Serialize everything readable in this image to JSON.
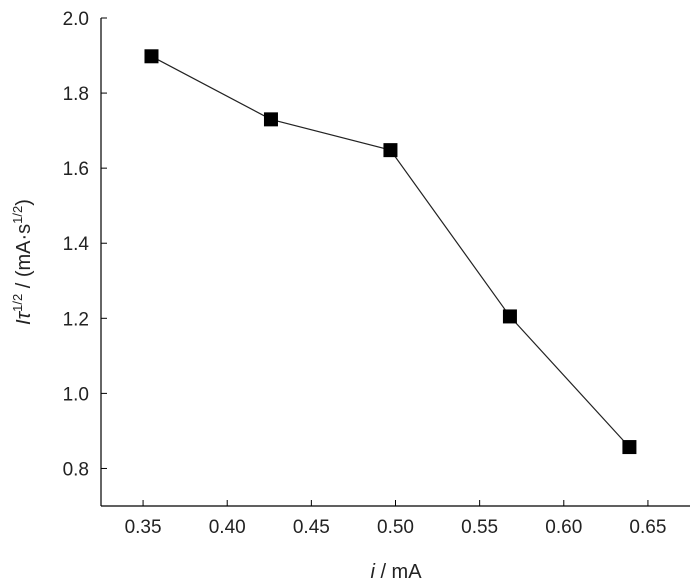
{
  "chart_data": {
    "type": "line",
    "xlabel": {
      "italic": "i",
      "rest": " / mA"
    },
    "ylabel": {
      "italic": "I",
      "tau": "τ",
      "sup1": "1/2",
      "mid": " / (mA·s",
      "sup2": "1/2",
      "end": ")"
    },
    "xlim": [
      0.325,
      0.675
    ],
    "ylim": [
      0.7,
      2.0
    ],
    "x_ticks": [
      0.35,
      0.4,
      0.45,
      0.5,
      0.55,
      0.6,
      0.65
    ],
    "x_tick_labels": [
      "0.35",
      "0.40",
      "0.45",
      "0.50",
      "0.55",
      "0.60",
      "0.65"
    ],
    "y_ticks": [
      0.8,
      1.0,
      1.2,
      1.4,
      1.6,
      1.8,
      2.0
    ],
    "y_tick_labels": [
      "0.8",
      "1.0",
      "1.2",
      "1.4",
      "1.6",
      "1.8",
      "2.0"
    ],
    "grid": false,
    "legend": "none",
    "series": [
      {
        "x": [
          0.355,
          0.426,
          0.497,
          0.568,
          0.639
        ],
        "y": [
          1.898,
          1.73,
          1.648,
          1.205,
          0.857
        ],
        "marker": "square",
        "color": "#000000"
      }
    ]
  }
}
